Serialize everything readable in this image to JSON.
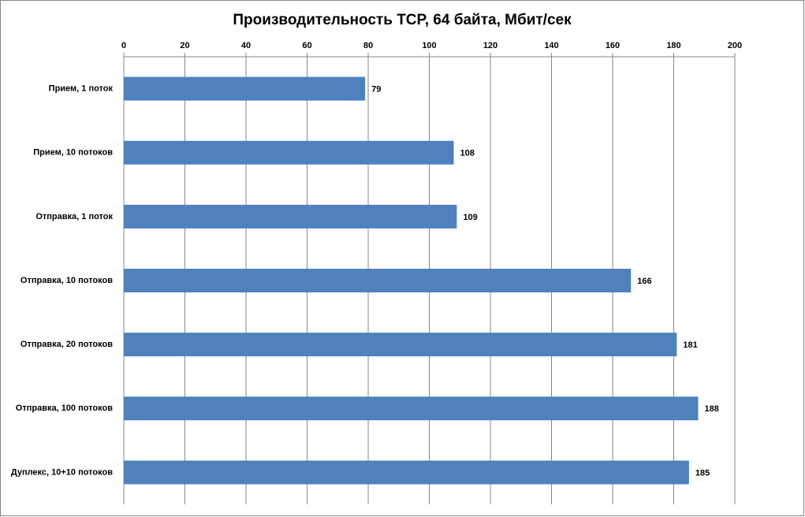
{
  "chart_data": {
    "type": "bar",
    "orientation": "horizontal",
    "title": "Производительность TCP, 64 байта, Мбит/сек",
    "categories": [
      "Прием, 1 поток",
      "Прием, 10 потоков",
      "Отправка, 1 поток",
      "Отправка, 10 потоков",
      "Отправка, 20 потоков",
      "Отправка, 100 потоков",
      "Дуплекс, 10+10 потоков"
    ],
    "values": [
      79,
      108,
      109,
      166,
      181,
      188,
      185
    ],
    "color": "#4f81bd",
    "xlim": [
      0,
      200
    ],
    "xticks": [
      0,
      20,
      40,
      60,
      80,
      100,
      120,
      140,
      160,
      180,
      200
    ],
    "grid": true
  }
}
